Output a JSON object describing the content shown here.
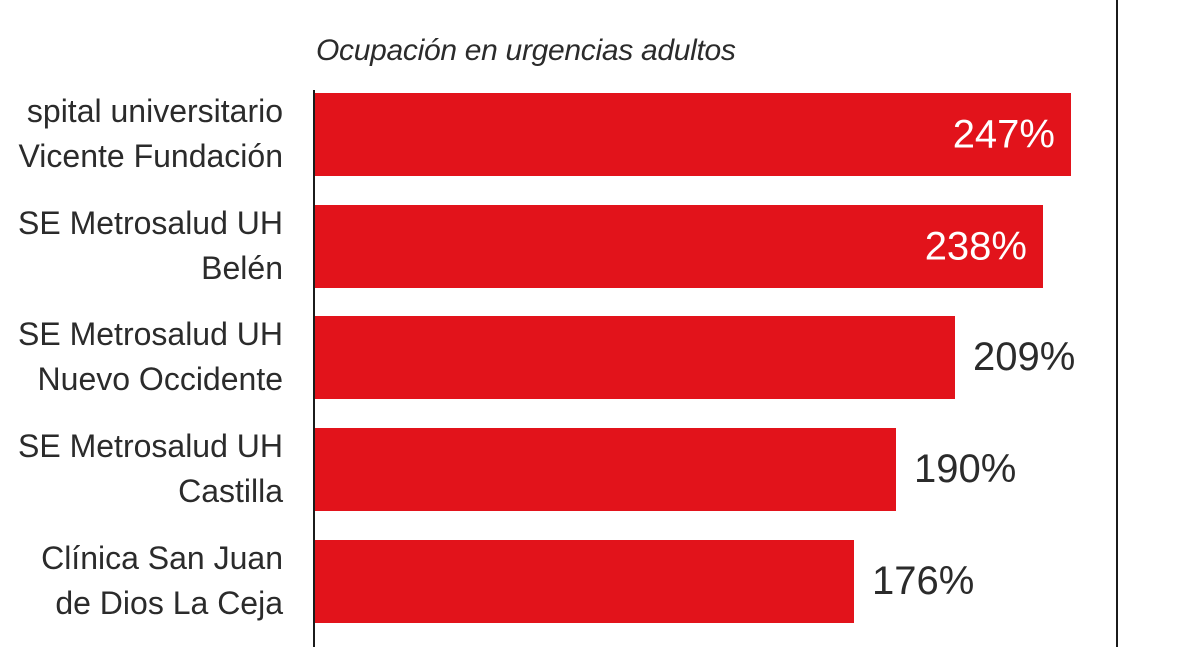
{
  "chart_data": {
    "type": "bar",
    "orientation": "horizontal",
    "title": "Ocupación en urgencias adultos",
    "categories": [
      "spital universitario Vicente Fundación",
      "SE Metrosalud UH Belén",
      "SE Metrosalud UH Nuevo Occidente",
      "SE Metrosalud UH Castilla",
      "Clínica San Juan de Dios La Ceja"
    ],
    "categories_lines": [
      [
        "spital universitario",
        "Vicente Fundación"
      ],
      [
        "SE Metrosalud UH",
        "Belén"
      ],
      [
        "SE Metrosalud UH",
        "Nuevo Occidente"
      ],
      [
        "SE Metrosalud UH",
        "Castilla"
      ],
      [
        "Clínica San Juan",
        "de Dios La Ceja"
      ]
    ],
    "values": [
      247,
      238,
      209,
      190,
      176
    ],
    "value_labels": [
      "247%",
      "238%",
      "209%",
      "190%",
      "176%"
    ],
    "unit": "%",
    "xlim": [
      0,
      262
    ],
    "grid": false,
    "legend": false,
    "bar_color": "#e2131b",
    "value_label_color_inside": "#ffffff",
    "value_label_color_outside": "#2b2b2b",
    "axis_color": "#1b1b1b",
    "title_color": "#2b2b2b"
  }
}
